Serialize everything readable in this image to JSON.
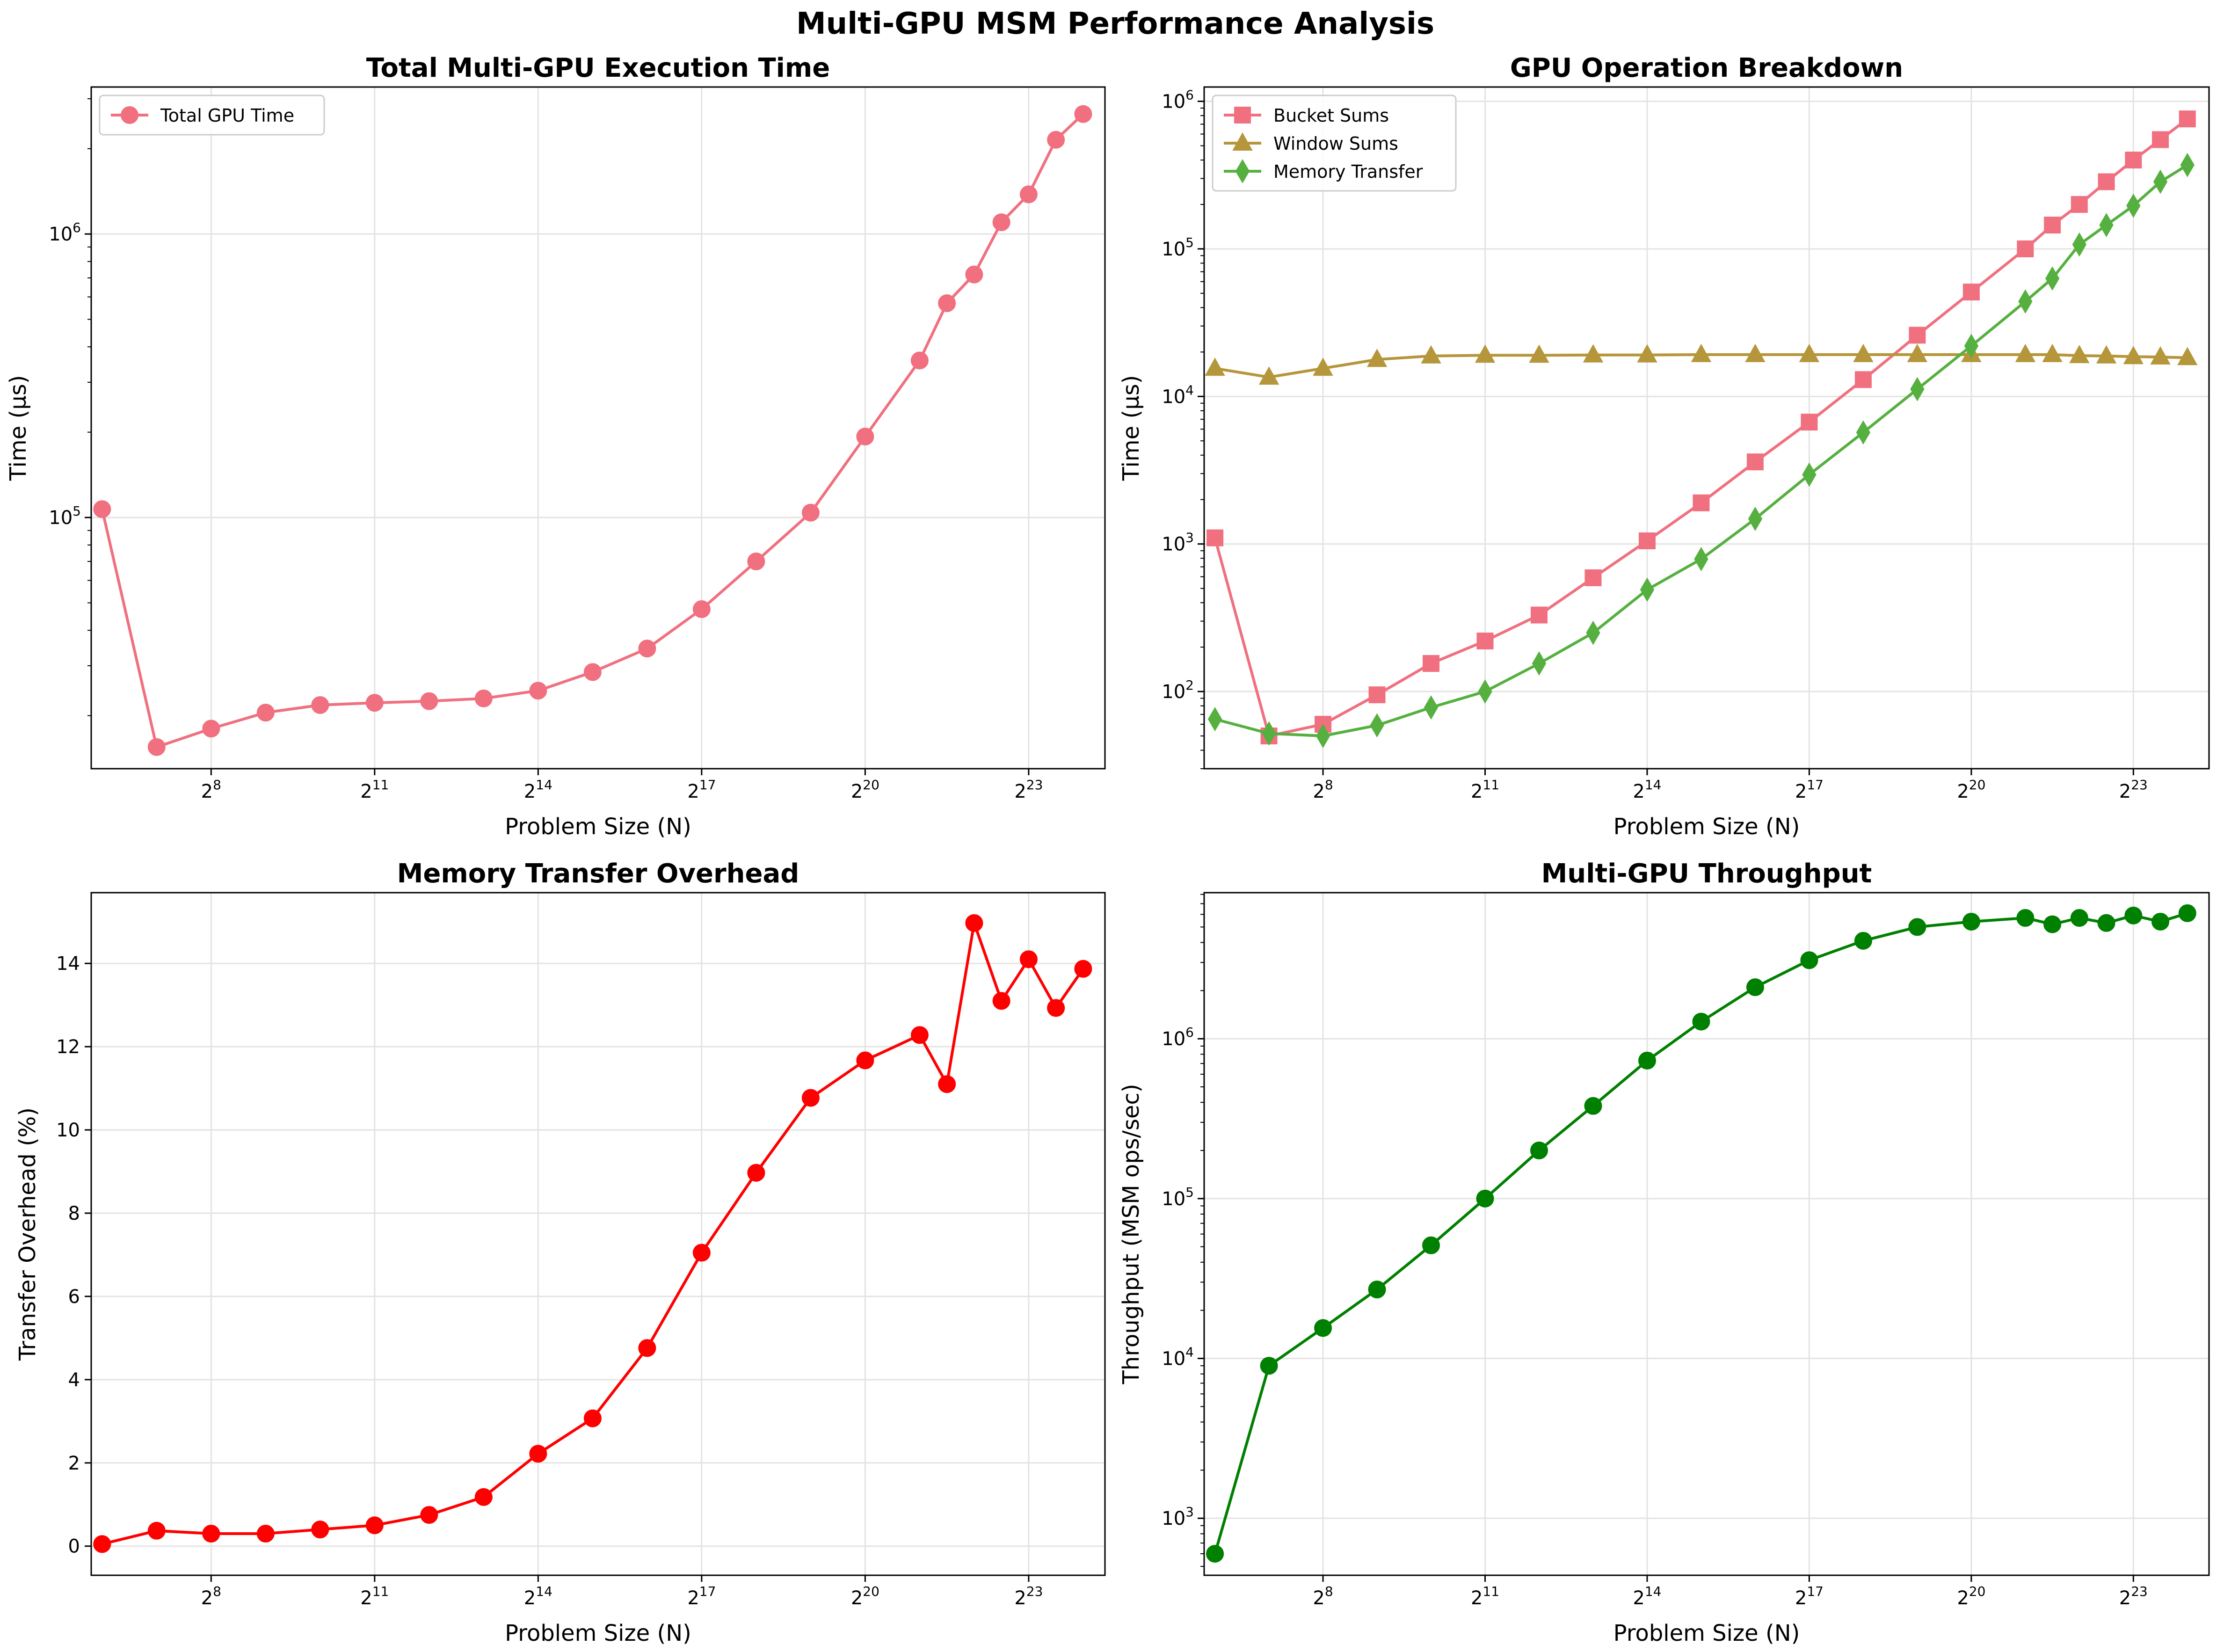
{
  "figure": {
    "suptitle": "Multi-GPU MSM Performance Analysis"
  },
  "chart_data": [
    {
      "type": "line",
      "title": "Total Multi-GPU Execution Time",
      "xlabel": "Problem Size (N)",
      "ylabel": "Time (μs)",
      "xscale": "log2",
      "yscale": "log10",
      "xlim": [
        5.8,
        24.4
      ],
      "ylim": [
        13000,
        3300000
      ],
      "x_tick_exponents": [
        8,
        11,
        14,
        17,
        20,
        23
      ],
      "y_tick_exponents": [
        5,
        6
      ],
      "grid": true,
      "legend": "top-left",
      "x": [
        6,
        7,
        8,
        9,
        10,
        11,
        12,
        13,
        14,
        15,
        16,
        17,
        18,
        19,
        20,
        21,
        21.5,
        22,
        22.5,
        23,
        23.5,
        24
      ],
      "series": [
        {
          "name": "Total GPU Time",
          "color": "#f0707f",
          "marker": "circle",
          "values": [
            107000,
            15500,
            18000,
            20500,
            21800,
            22200,
            22500,
            23000,
            24500,
            28500,
            34500,
            47500,
            70000,
            104000,
            193000,
            358000,
            570000,
            720000,
            1100000,
            1380000,
            2150000,
            2650000
          ]
        }
      ]
    },
    {
      "type": "line",
      "title": "GPU Operation Breakdown",
      "xlabel": "Problem Size (N)",
      "ylabel": "Time (μs)",
      "xscale": "log2",
      "yscale": "log10",
      "xlim": [
        5.8,
        24.4
      ],
      "ylim": [
        30,
        1250000
      ],
      "x_tick_exponents": [
        8,
        11,
        14,
        17,
        20,
        23
      ],
      "y_tick_exponents": [
        2,
        3,
        4,
        5,
        6
      ],
      "grid": true,
      "legend": "top-left",
      "x": [
        6,
        7,
        8,
        9,
        10,
        11,
        12,
        13,
        14,
        15,
        16,
        17,
        18,
        19,
        20,
        21,
        21.5,
        22,
        22.5,
        23,
        23.5,
        24
      ],
      "series": [
        {
          "name": "Bucket Sums",
          "color": "#f0707f",
          "marker": "square",
          "values": [
            1100,
            50,
            60,
            95,
            155,
            220,
            330,
            590,
            1050,
            1900,
            3600,
            6700,
            13000,
            26000,
            51000,
            100000,
            145000,
            200000,
            285000,
            400000,
            550000,
            760000
          ]
        },
        {
          "name": "Window Sums",
          "color": "#b5963a",
          "marker": "triangle",
          "values": [
            15500,
            13500,
            15500,
            17800,
            18800,
            19000,
            19000,
            19100,
            19100,
            19200,
            19200,
            19200,
            19200,
            19200,
            19200,
            19200,
            19200,
            18900,
            18800,
            18600,
            18500,
            18300
          ]
        },
        {
          "name": "Memory Transfer",
          "color": "#55b03f",
          "marker": "diamond",
          "values": [
            65,
            52,
            50,
            59,
            78,
            100,
            155,
            250,
            490,
            790,
            1480,
            2950,
            5700,
            11200,
            22000,
            44000,
            63000,
            107000,
            145000,
            196000,
            285000,
            370000
          ]
        }
      ]
    },
    {
      "type": "line",
      "title": "Memory Transfer Overhead",
      "xlabel": "Problem Size (N)",
      "ylabel": "Transfer Overhead (%)",
      "xscale": "log2",
      "yscale": "linear",
      "xlim": [
        5.8,
        24.4
      ],
      "ylim": [
        -0.7,
        15.7
      ],
      "x_tick_exponents": [
        8,
        11,
        14,
        17,
        20,
        23
      ],
      "y_ticks": [
        0,
        2,
        4,
        6,
        8,
        10,
        12,
        14
      ],
      "grid": true,
      "x": [
        6,
        7,
        8,
        9,
        10,
        11,
        12,
        13,
        14,
        15,
        16,
        17,
        18,
        19,
        20,
        21,
        21.5,
        22,
        22.5,
        23,
        23.5,
        24
      ],
      "series": [
        {
          "color": "#ff0000",
          "marker": "circle",
          "values": [
            0.05,
            0.37,
            0.3,
            0.3,
            0.4,
            0.5,
            0.75,
            1.18,
            2.22,
            3.07,
            4.76,
            7.05,
            8.97,
            10.77,
            11.67,
            12.28,
            11.1,
            14.97,
            13.1,
            14.1,
            12.93,
            13.87
          ]
        }
      ]
    },
    {
      "type": "line",
      "title": "Multi-GPU Throughput",
      "xlabel": "Problem Size (N)",
      "ylabel": "Throughput (MSM ops/sec)",
      "xscale": "log2",
      "yscale": "log10",
      "xlim": [
        5.8,
        24.4
      ],
      "ylim": [
        440,
        8200000
      ],
      "x_tick_exponents": [
        8,
        11,
        14,
        17,
        20,
        23
      ],
      "y_tick_exponents": [
        3,
        4,
        5,
        6
      ],
      "grid": true,
      "x": [
        6,
        7,
        8,
        9,
        10,
        11,
        12,
        13,
        14,
        15,
        16,
        17,
        18,
        19,
        20,
        21,
        21.5,
        22,
        22.5,
        23,
        23.5,
        24
      ],
      "series": [
        {
          "color": "#008000",
          "marker": "circle",
          "values": [
            600,
            9000,
            15500,
            27000,
            51000,
            100000,
            200000,
            380000,
            730000,
            1280000,
            2100000,
            3100000,
            4100000,
            5000000,
            5400000,
            5700000,
            5200000,
            5700000,
            5300000,
            5900000,
            5400000,
            6100000
          ]
        }
      ]
    }
  ]
}
